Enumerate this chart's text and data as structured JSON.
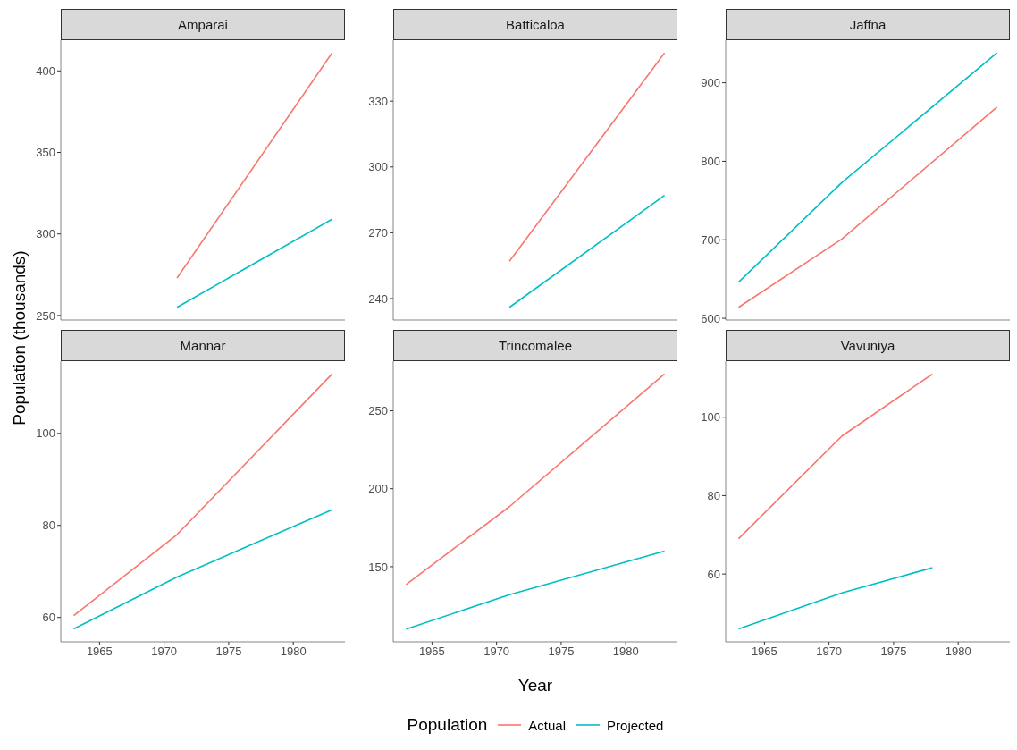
{
  "chart_data": [
    {
      "type": "line",
      "title": "Amparai",
      "ylabel": "Population (thousands)",
      "legend_title": "Population",
      "legend": "bottom",
      "x": [
        1971,
        1983
      ],
      "xlim": [
        1962,
        1984
      ],
      "xticks": [
        1965,
        1970,
        1975,
        1980
      ],
      "ylim": [
        247.2,
        418.8
      ],
      "yticks": [
        250,
        300,
        350,
        400
      ],
      "tick_labels": "y",
      "series": [
        {
          "name": "Actual",
          "color": "#f8766d",
          "values": [
            273,
            411
          ]
        },
        {
          "name": "Projected",
          "color": "#00bfc4",
          "values": [
            255,
            309
          ]
        }
      ]
    },
    {
      "type": "line",
      "title": "Batticaloa",
      "x": [
        1971,
        1983
      ],
      "xlim": [
        1962,
        1984
      ],
      "xticks": [
        1965,
        1970,
        1975,
        1980
      ],
      "ylim": [
        230.2,
        357.8
      ],
      "yticks": [
        240,
        270,
        300,
        330
      ],
      "tick_labels": "y",
      "series": [
        {
          "color": "#f8766d",
          "values": [
            257,
            352
          ]
        },
        {
          "color": "#00bfc4",
          "values": [
            236,
            287
          ]
        }
      ]
    },
    {
      "type": "line",
      "title": "Jaffna",
      "x": [
        1963,
        1971,
        1983
      ],
      "xlim": [
        1962,
        1984
      ],
      "xticks": [
        1965,
        1970,
        1975,
        1980
      ],
      "ylim": [
        597.8,
        954.2
      ],
      "yticks": [
        600,
        700,
        800,
        900
      ],
      "tick_labels": "y",
      "series": [
        {
          "color": "#f8766d",
          "values": [
            614,
            701,
            869
          ]
        },
        {
          "color": "#00bfc4",
          "values": [
            646,
            773,
            938
          ]
        }
      ]
    },
    {
      "type": "line",
      "title": "Mannar",
      "x": [
        1963,
        1971,
        1983
      ],
      "xlim": [
        1962,
        1984
      ],
      "xticks": [
        1965,
        1970,
        1975,
        1980
      ],
      "ylim": [
        54.7,
        115.7
      ],
      "yticks": [
        60,
        80,
        100
      ],
      "series": [
        {
          "color": "#f8766d",
          "values": [
            60.4,
            78,
            112.9
          ]
        },
        {
          "color": "#00bfc4",
          "values": [
            57.5,
            68.8,
            83.4
          ]
        }
      ]
    },
    {
      "type": "line",
      "title": "Trincomalee",
      "xlabel": "Year",
      "x": [
        1963,
        1971,
        1983
      ],
      "xlim": [
        1962,
        1984
      ],
      "xticks": [
        1965,
        1970,
        1975,
        1980
      ],
      "ylim": [
        101.8,
        281.8
      ],
      "yticks": [
        150,
        200,
        250
      ],
      "series": [
        {
          "color": "#f8766d",
          "values": [
            138.5,
            188.5,
            273.6
          ]
        },
        {
          "color": "#00bfc4",
          "values": [
            110,
            132,
            160
          ]
        }
      ]
    },
    {
      "type": "line",
      "title": "Vavuniya",
      "x": [
        1963,
        1971,
        1978
      ],
      "xlim": [
        1962,
        1984
      ],
      "xticks": [
        1965,
        1970,
        1975,
        1980
      ],
      "ylim": [
        42.7,
        114.3
      ],
      "yticks": [
        60,
        80,
        100
      ],
      "series": [
        {
          "color": "#f8766d",
          "values": [
            69,
            95.2,
            111
          ]
        },
        {
          "color": "#00bfc4",
          "values": [
            46,
            55.2,
            61.6
          ]
        }
      ]
    }
  ]
}
